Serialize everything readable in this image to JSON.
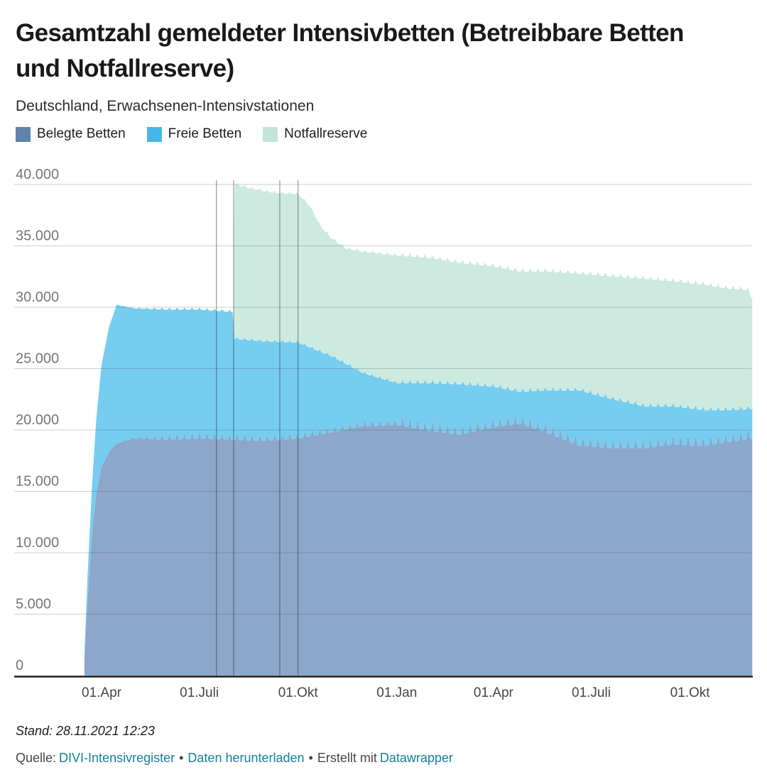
{
  "header": {
    "title_line1": "Gesamtzahl gemeldeter Intensivbetten (Betreibbare Betten",
    "title_line2": "und Notfallreserve)",
    "subtitle": "Deutschland, Erwachsenen-Intensivstationen"
  },
  "legend": [
    {
      "label": "Belegte Betten",
      "color": "#5f83ad"
    },
    {
      "label": "Freie Betten",
      "color": "#45b8e8"
    },
    {
      "label": "Notfallreserve",
      "color": "#c3e5d8"
    }
  ],
  "colors": {
    "link": "#15809d",
    "text_muted": "#464646",
    "axis_label": "#767676",
    "x_label": "#454545"
  },
  "footer": {
    "stand": "Stand: 28.11.2021 12:23",
    "source_label": "Quelle:",
    "source_link": "DIVI-Intensivregister",
    "separator": "•",
    "download_link": "Daten herunterladen",
    "created_with": "Erstellt mit",
    "creator_link": "Datawrapper"
  },
  "chart_data": {
    "type": "area",
    "stacked": true,
    "title": "Gesamtzahl gemeldeter Intensivbetten (Betreibbare Betten und Notfallreserve)",
    "subtitle": "Deutschland, Erwachsenen-Intensivstationen",
    "xlabel": "",
    "ylabel": "",
    "unit": "Betten",
    "ylim": [
      0,
      40000
    ],
    "grid": "horizontal",
    "legend_position": "top",
    "x_range": {
      "start": "2020-03-16",
      "end": "2021-11-28"
    },
    "x_ticks": [
      {
        "date": "2020-04-01",
        "label": "01.Apr"
      },
      {
        "date": "2020-07-01",
        "label": "01.Juli"
      },
      {
        "date": "2020-10-01",
        "label": "01.Okt"
      },
      {
        "date": "2021-01-01",
        "label": "01.Jan"
      },
      {
        "date": "2021-04-01",
        "label": "01.Apr"
      },
      {
        "date": "2021-07-01",
        "label": "01.Juli"
      },
      {
        "date": "2021-10-01",
        "label": "01.Okt"
      }
    ],
    "y_ticks": [
      {
        "value": 0,
        "label": "0"
      },
      {
        "value": 5000,
        "label": "5.000"
      },
      {
        "value": 10000,
        "label": "10.000"
      },
      {
        "value": 15000,
        "label": "15.000"
      },
      {
        "value": 20000,
        "label": "20.000"
      },
      {
        "value": 25000,
        "label": "25.000"
      },
      {
        "value": 30000,
        "label": "30.000"
      },
      {
        "value": 35000,
        "label": "35.000"
      },
      {
        "value": 40000,
        "label": "40.000"
      }
    ],
    "marker_lines": [
      "2020-07-17",
      "2020-08-02",
      "2020-09-14",
      "2020-10-01"
    ],
    "weekly_pattern": {
      "period_days": 7,
      "phase": 2.5,
      "exponent": 2.5,
      "ramp_from": "2020-04-13",
      "ramp_to": "2020-06-01",
      "pre2021_factor": 0.62,
      "amplitudes": [
        820,
        300,
        300
      ]
    },
    "series": [
      {
        "name": "Belegte Betten",
        "legend_color": "#5f83ad",
        "fill": "#8ca7ca",
        "keyframes": [
          [
            "2020-03-16",
            1200
          ],
          [
            "2020-03-19",
            6000
          ],
          [
            "2020-03-23",
            11500
          ],
          [
            "2020-03-27",
            14800
          ],
          [
            "2020-04-01",
            17000
          ],
          [
            "2020-04-08",
            18200
          ],
          [
            "2020-04-15",
            18900
          ],
          [
            "2020-05-01",
            19300
          ],
          [
            "2020-06-01",
            19200
          ],
          [
            "2020-07-01",
            19300
          ],
          [
            "2020-08-01",
            19200
          ],
          [
            "2020-09-01",
            19100
          ],
          [
            "2020-10-01",
            19300
          ],
          [
            "2020-11-01",
            19800
          ],
          [
            "2020-12-01",
            20300
          ],
          [
            "2021-01-01",
            20400
          ],
          [
            "2021-02-01",
            19900
          ],
          [
            "2021-03-01",
            19600
          ],
          [
            "2021-04-01",
            20200
          ],
          [
            "2021-04-25",
            20500
          ],
          [
            "2021-05-20",
            19800
          ],
          [
            "2021-06-20",
            18700
          ],
          [
            "2021-07-20",
            18500
          ],
          [
            "2021-08-20",
            18500
          ],
          [
            "2021-09-15",
            18800
          ],
          [
            "2021-10-15",
            18700
          ],
          [
            "2021-11-05",
            19000
          ],
          [
            "2021-11-28",
            19300
          ]
        ]
      },
      {
        "name": "Freie Betten",
        "legend_color": "#45b8e8",
        "fill": "#76cdf0",
        "keyframes": [
          [
            "2020-03-16",
            600
          ],
          [
            "2020-03-19",
            2200
          ],
          [
            "2020-03-23",
            3800
          ],
          [
            "2020-03-27",
            6000
          ],
          [
            "2020-04-01",
            8300
          ],
          [
            "2020-04-08",
            10200
          ],
          [
            "2020-04-15",
            11300
          ],
          [
            "2020-05-01",
            10600
          ],
          [
            "2020-06-01",
            10600
          ],
          [
            "2020-07-01",
            10500
          ],
          [
            "2020-08-01",
            10400
          ],
          [
            "2020-08-03",
            8200
          ],
          [
            "2020-09-01",
            8100
          ],
          [
            "2020-10-01",
            7800
          ],
          [
            "2020-11-01",
            6200
          ],
          [
            "2020-12-01",
            4300
          ],
          [
            "2021-01-01",
            3400
          ],
          [
            "2021-02-01",
            3900
          ],
          [
            "2021-03-01",
            4100
          ],
          [
            "2021-04-01",
            3300
          ],
          [
            "2021-04-25",
            2600
          ],
          [
            "2021-05-20",
            3400
          ],
          [
            "2021-06-20",
            4500
          ],
          [
            "2021-07-20",
            4000
          ],
          [
            "2021-08-20",
            3400
          ],
          [
            "2021-09-15",
            3100
          ],
          [
            "2021-10-15",
            2900
          ],
          [
            "2021-11-05",
            2600
          ],
          [
            "2021-11-28",
            2400
          ]
        ]
      },
      {
        "name": "Notfallreserve",
        "legend_color": "#c3e5d8",
        "fill": "#cdeae0",
        "keyframes": [
          [
            "2020-08-01",
            0
          ],
          [
            "2020-08-03",
            12600
          ],
          [
            "2020-08-15",
            12400
          ],
          [
            "2020-09-01",
            12200
          ],
          [
            "2020-09-16",
            12100
          ],
          [
            "2020-10-01",
            12100
          ],
          [
            "2020-10-12",
            11500
          ],
          [
            "2020-10-22",
            10200
          ],
          [
            "2020-11-01",
            9600
          ],
          [
            "2020-11-15",
            9400
          ],
          [
            "2020-12-01",
            9900
          ],
          [
            "2021-01-01",
            10400
          ],
          [
            "2021-02-01",
            10200
          ],
          [
            "2021-03-01",
            9900
          ],
          [
            "2021-04-01",
            9800
          ],
          [
            "2021-04-25",
            9800
          ],
          [
            "2021-05-20",
            9700
          ],
          [
            "2021-06-20",
            9500
          ],
          [
            "2021-07-20",
            10000
          ],
          [
            "2021-08-20",
            10400
          ],
          [
            "2021-09-15",
            10200
          ],
          [
            "2021-10-15",
            10200
          ],
          [
            "2021-11-05",
            9900
          ],
          [
            "2021-11-24",
            9700
          ],
          [
            "2021-11-28",
            8900
          ]
        ]
      }
    ]
  }
}
